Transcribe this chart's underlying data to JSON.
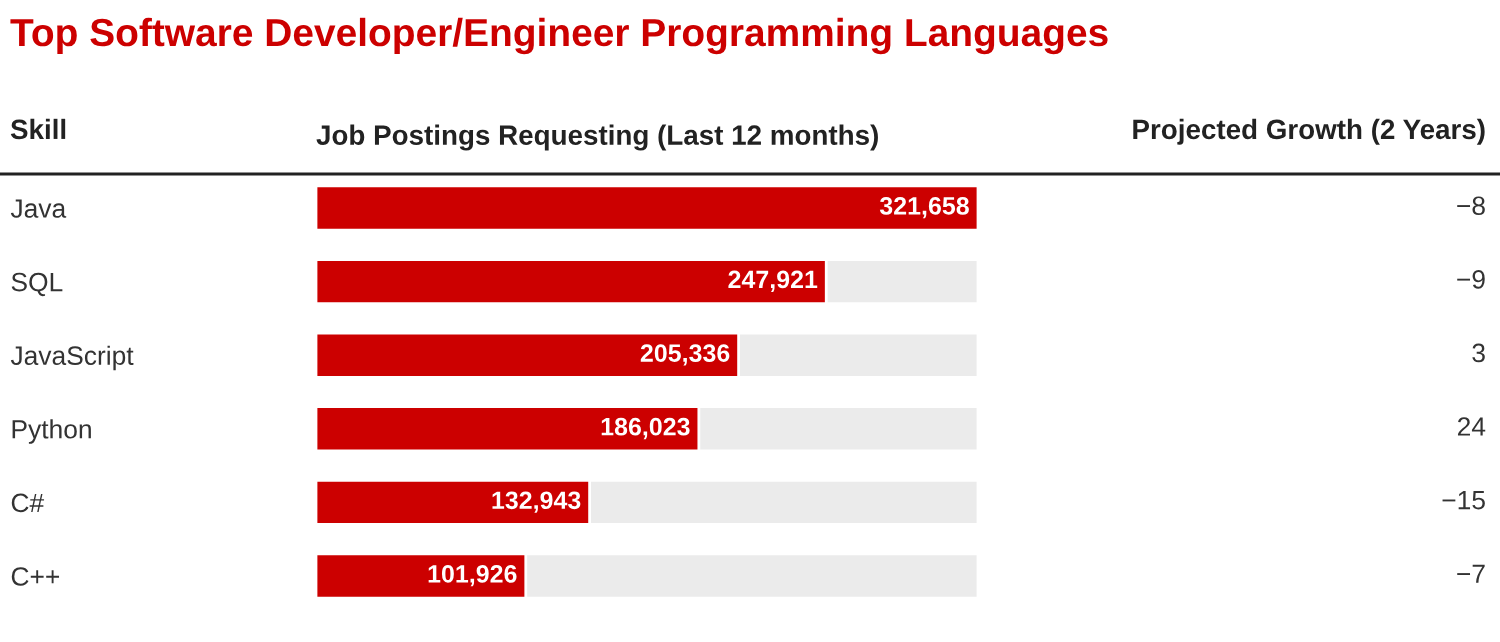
{
  "chart_data": [
    {
      "type": "bar",
      "orientation": "horizontal",
      "title": "Top Software Developer/Engineer Programming Languages",
      "xlabel": "Job Postings Requesting (Last 12 months)",
      "ylabel": "Skill",
      "categories": [
        "Java",
        "SQL",
        "JavaScript",
        "Python",
        "C#",
        "C++"
      ],
      "values": [
        321658,
        247921,
        205336,
        186023,
        132943,
        101926
      ],
      "color": "#cc0000",
      "value_labels": [
        "321,658",
        "247,921",
        "205,336",
        "186,023",
        "132,943",
        "101,926"
      ],
      "tick_labels": "y"
    },
    {
      "type": "other",
      "title": "Projected Growth (2 Years)",
      "values": [
        -8,
        -9,
        3,
        24,
        -15,
        -7
      ],
      "value_labels": [
        "−8",
        "−9",
        "3",
        "24",
        "−15",
        "−7"
      ]
    }
  ]
}
